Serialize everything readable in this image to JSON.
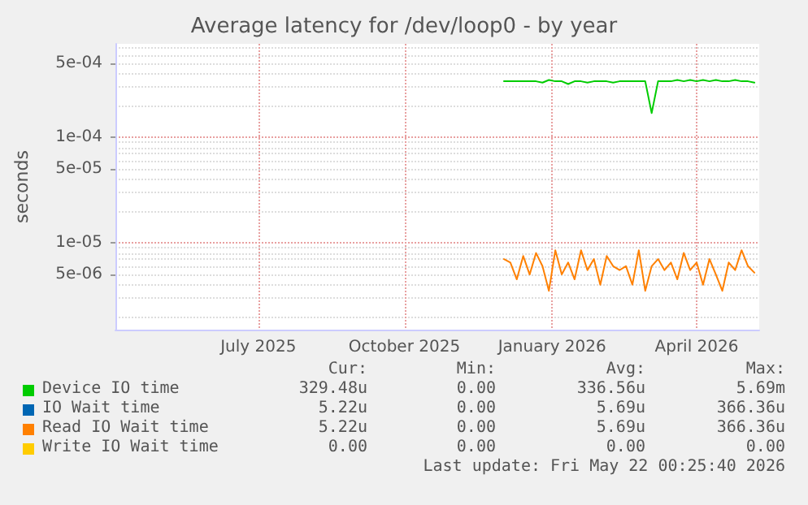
{
  "chart_data": {
    "type": "line",
    "title": "Average latency for /dev/loop0 - by year",
    "ylabel": "seconds",
    "log": "y",
    "grid": true,
    "legend": "bottom",
    "marker": "none",
    "line_style": "solid",
    "ylim": [
      1.5e-06,
      0.00077
    ],
    "yticks": [
      {
        "value": 5e-06,
        "label": "5e-06"
      },
      {
        "value": 1e-05,
        "label": "1e-05"
      },
      {
        "value": 5e-05,
        "label": "5e-05"
      },
      {
        "value": 0.0001,
        "label": "1e-04"
      },
      {
        "value": 0.0005,
        "label": "5e-04"
      }
    ],
    "xlim": [
      "2025-04-18",
      "2026-05-24"
    ],
    "xticks": [
      {
        "value": "2025-07-16",
        "label": "July 2025"
      },
      {
        "value": "2025-10-15",
        "label": "October 2025"
      },
      {
        "value": "2026-01-15",
        "label": "January 2026"
      },
      {
        "value": "2026-04-15",
        "label": "April 2026"
      }
    ],
    "x": [
      "2025-12-16",
      "2025-12-20",
      "2025-12-24",
      "2025-12-28",
      "2026-01-01",
      "2026-01-05",
      "2026-01-09",
      "2026-01-13",
      "2026-01-17",
      "2026-01-21",
      "2026-01-25",
      "2026-01-29",
      "2026-02-02",
      "2026-02-06",
      "2026-02-10",
      "2026-02-14",
      "2026-02-18",
      "2026-02-22",
      "2026-02-26",
      "2026-03-02",
      "2026-03-06",
      "2026-03-10",
      "2026-03-14",
      "2026-03-18",
      "2026-03-22",
      "2026-03-26",
      "2026-03-30",
      "2026-04-03",
      "2026-04-07",
      "2026-04-11",
      "2026-04-15",
      "2026-04-19",
      "2026-04-23",
      "2026-04-27",
      "2026-05-01",
      "2026-05-05",
      "2026-05-09",
      "2026-05-13",
      "2026-05-17",
      "2026-05-21"
    ],
    "series": [
      {
        "name": "Device IO time",
        "color": "#00cc00",
        "values": [
          0.00034,
          0.00034,
          0.00034,
          0.00034,
          0.00034,
          0.00034,
          0.00033,
          0.00035,
          0.00034,
          0.00034,
          0.00032,
          0.00034,
          0.00034,
          0.00033,
          0.00034,
          0.00034,
          0.00034,
          0.00033,
          0.00034,
          0.00034,
          0.00034,
          0.00034,
          0.00034,
          0.00017,
          0.00034,
          0.00034,
          0.00034,
          0.00035,
          0.00034,
          0.00035,
          0.00034,
          0.00035,
          0.00034,
          0.00035,
          0.00034,
          0.00034,
          0.00035,
          0.00034,
          0.00034,
          0.00033
        ]
      },
      {
        "name": "IO Wait time",
        "color": "#0066b3",
        "values": [
          null,
          null,
          null,
          null,
          null,
          null,
          null,
          null,
          null,
          null,
          null,
          null,
          null,
          null,
          null,
          null,
          null,
          null,
          null,
          null,
          null,
          null,
          null,
          null,
          null,
          null,
          null,
          null,
          null,
          null,
          null,
          null,
          null,
          null,
          null,
          null,
          null,
          null,
          null,
          null
        ]
      },
      {
        "name": "Read IO Wait time",
        "color": "#ff8000",
        "values": [
          7e-06,
          6.5e-06,
          4.5e-06,
          7.5e-06,
          5e-06,
          8e-06,
          6e-06,
          3.5e-06,
          8.5e-06,
          5e-06,
          6.5e-06,
          4.5e-06,
          8.5e-06,
          5.5e-06,
          7e-06,
          4e-06,
          7.5e-06,
          6e-06,
          5.5e-06,
          6e-06,
          4e-06,
          8.5e-06,
          3.5e-06,
          6e-06,
          7e-06,
          5.5e-06,
          6.5e-06,
          4.5e-06,
          8e-06,
          5.5e-06,
          6.5e-06,
          4e-06,
          7e-06,
          5e-06,
          3.5e-06,
          6.5e-06,
          5.5e-06,
          8.5e-06,
          6e-06,
          5.2e-06
        ]
      },
      {
        "name": "Write IO Wait time",
        "color": "#ffcc00",
        "values": [
          null,
          null,
          null,
          null,
          null,
          null,
          null,
          null,
          null,
          null,
          null,
          null,
          null,
          null,
          null,
          null,
          null,
          null,
          null,
          null,
          null,
          null,
          null,
          null,
          null,
          null,
          null,
          null,
          null,
          null,
          null,
          null,
          null,
          null,
          null,
          null,
          null,
          null,
          null,
          null
        ]
      }
    ],
    "annotations": [
      "Cur:",
      "Min:",
      "Avg:",
      "Max:",
      "329.48u",
      "0.00",
      "336.56u",
      "5.69m",
      "5.22u",
      "0.00",
      "5.69u",
      "366.36u",
      "5.22u",
      "0.00",
      "5.69u",
      "366.36u",
      "0.00",
      "0.00",
      "0.00",
      "0.00",
      "Last update: Fri May 22 00:25:40 2026"
    ]
  }
}
